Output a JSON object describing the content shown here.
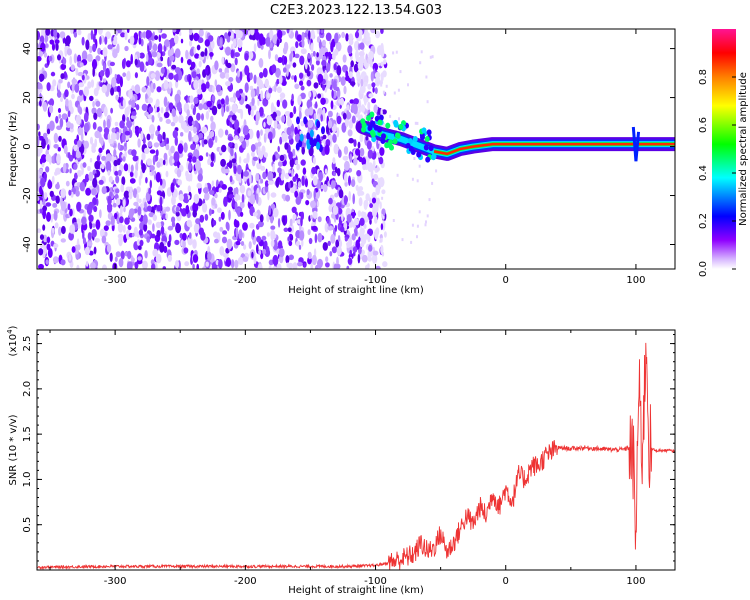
{
  "figure": {
    "title": "C2E3.2023.122.13.54.G03"
  },
  "chart_data": [
    {
      "type": "heatmap",
      "xlabel": "Height of straight line (km)",
      "ylabel": "Frequency (Hz)",
      "xlim": [
        -360,
        130
      ],
      "ylim": [
        -50,
        48
      ],
      "xticks": [
        -300,
        -200,
        -100,
        0,
        100
      ],
      "yticks": [
        -40,
        -20,
        0,
        20,
        40
      ],
      "colorbar": {
        "label": "Normalized spectral amplitude",
        "range": [
          0,
          1
        ],
        "ticks": [
          0.0,
          0.2,
          0.4,
          0.6,
          0.8
        ],
        "colormap": [
          "#ffffff",
          "#8f00ff",
          "#0000ff",
          "#00ffff",
          "#00ff00",
          "#ffff00",
          "#ff7f00",
          "#ff0000",
          "#ff1493"
        ]
      },
      "features": {
        "noise_region_x": [
          -360,
          -100
        ],
        "signal_trace": [
          {
            "x": -110,
            "y": 8
          },
          {
            "x": -95,
            "y": 5
          },
          {
            "x": -80,
            "y": 3
          },
          {
            "x": -65,
            "y": 0
          },
          {
            "x": -55,
            "y": -2
          },
          {
            "x": -45,
            "y": -3
          },
          {
            "x": -35,
            "y": -1
          },
          {
            "x": -25,
            "y": 0
          },
          {
            "x": -10,
            "y": 1
          },
          {
            "x": 0,
            "y": 1
          },
          {
            "x": 50,
            "y": 1
          },
          {
            "x": 100,
            "y": 1
          },
          {
            "x": 130,
            "y": 1
          }
        ]
      }
    },
    {
      "type": "line",
      "xlabel": "Height of straight line (km)",
      "ylabel": "SNR (10 * v/v)",
      "y_multiplier": "(x10",
      "y_multiplier_exp": "4",
      "y_multiplier_close": ")",
      "xlim": [
        -360,
        130
      ],
      "ylim": [
        0,
        2.65
      ],
      "xticks": [
        -300,
        -200,
        -100,
        0,
        100
      ],
      "yticks": [
        0.5,
        1.0,
        1.5,
        2.0,
        2.5
      ],
      "color": "#ee3333",
      "series": [
        {
          "x": [
            -360,
            -300,
            -200,
            -120,
            -100,
            -90,
            -80,
            -70,
            -65,
            -60,
            -55,
            -50,
            -45,
            -40,
            -35,
            -30,
            -25,
            -20,
            -15,
            -10,
            -5,
            0,
            5,
            10,
            15,
            20,
            25,
            30,
            35,
            40,
            50,
            60,
            70,
            80,
            90,
            95,
            98,
            100,
            102,
            105,
            108,
            110,
            115,
            120,
            125,
            130
          ],
          "y": [
            0.03,
            0.04,
            0.04,
            0.04,
            0.05,
            0.08,
            0.12,
            0.18,
            0.3,
            0.2,
            0.25,
            0.4,
            0.2,
            0.3,
            0.45,
            0.6,
            0.5,
            0.7,
            0.6,
            0.85,
            0.7,
            0.9,
            0.75,
            1.05,
            1.0,
            1.15,
            1.15,
            1.25,
            1.3,
            1.35,
            1.34,
            1.35,
            1.34,
            1.33,
            1.33,
            1.35,
            1.2,
            0.3,
            2.0,
            1.3,
            2.6,
            1.35,
            1.32,
            1.32,
            1.32,
            1.31
          ]
        }
      ]
    }
  ]
}
